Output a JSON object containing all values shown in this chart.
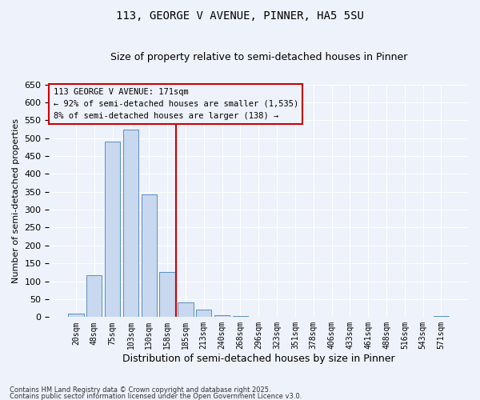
{
  "title1": "113, GEORGE V AVENUE, PINNER, HA5 5SU",
  "title2": "Size of property relative to semi-detached houses in Pinner",
  "xlabel": "Distribution of semi-detached houses by size in Pinner",
  "ylabel": "Number of semi-detached properties",
  "bar_labels": [
    "20sqm",
    "48sqm",
    "75sqm",
    "103sqm",
    "130sqm",
    "158sqm",
    "185sqm",
    "213sqm",
    "240sqm",
    "268sqm",
    "296sqm",
    "323sqm",
    "351sqm",
    "378sqm",
    "406sqm",
    "433sqm",
    "461sqm",
    "488sqm",
    "516sqm",
    "543sqm",
    "571sqm"
  ],
  "bar_values": [
    10,
    117,
    490,
    523,
    343,
    125,
    42,
    20,
    5,
    3,
    1,
    0,
    0,
    0,
    0,
    0,
    0,
    0,
    0,
    0,
    3
  ],
  "bar_color": "#c8d8ee",
  "bar_edge_color": "#5a8fc2",
  "vline_color": "#cc0000",
  "vline_index": 6,
  "annotation_text": "113 GEORGE V AVENUE: 171sqm\n← 92% of semi-detached houses are smaller (1,535)\n8% of semi-detached houses are larger (138) →",
  "annotation_box_color": "#cc0000",
  "ylim": [
    0,
    650
  ],
  "yticks": [
    0,
    50,
    100,
    150,
    200,
    250,
    300,
    350,
    400,
    450,
    500,
    550,
    600,
    650
  ],
  "footer1": "Contains HM Land Registry data © Crown copyright and database right 2025.",
  "footer2": "Contains public sector information licensed under the Open Government Licence v3.0.",
  "bg_color": "#eef2fb",
  "grid_color": "#ffffff"
}
